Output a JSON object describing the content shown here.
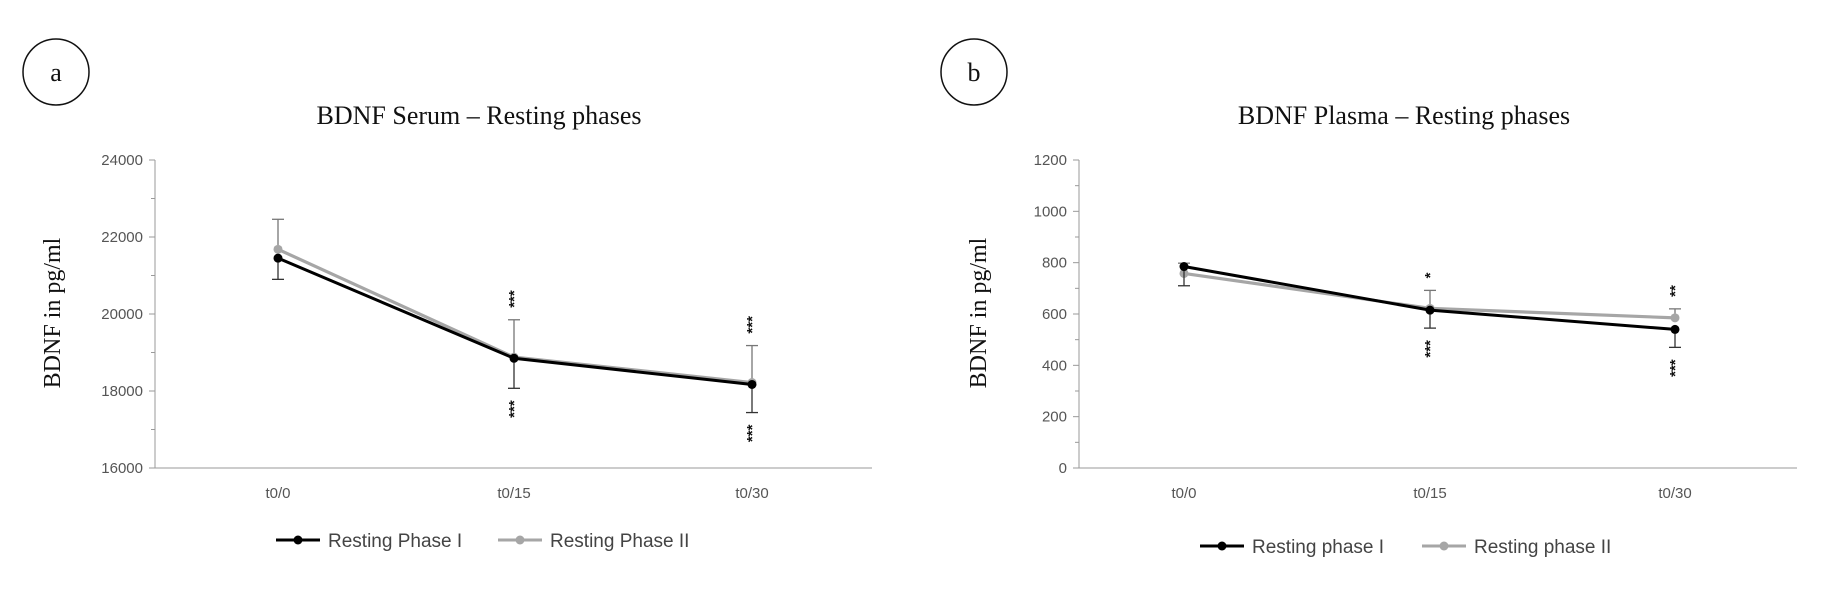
{
  "chart_data": [
    {
      "panel": "a",
      "type": "line",
      "title": "BDNF Serum – Resting phases",
      "xlabel": "",
      "ylabel": "BDNF in pg/ml",
      "categories": [
        "t0/0",
        "t0/15",
        "t0/30"
      ],
      "ylim": [
        16000,
        24000
      ],
      "yticks": [
        "16000",
        "18000",
        "20000",
        "22000",
        "24000"
      ],
      "grid": false,
      "legend": "bottom",
      "series": [
        {
          "name": "Resting Phase I",
          "color": "#000000",
          "values": [
            21450,
            18850,
            18170
          ],
          "err": [
            550,
            780,
            730
          ],
          "stars": [
            "",
            "***",
            "***"
          ]
        },
        {
          "name": "Resting Phase II",
          "color": "#a6a6a6",
          "values": [
            21680,
            18880,
            18220
          ],
          "err": [
            780,
            970,
            960
          ],
          "stars": [
            "",
            "***",
            "***"
          ]
        }
      ]
    },
    {
      "panel": "b",
      "type": "line",
      "title": "BDNF Plasma – Resting phases",
      "xlabel": "",
      "ylabel": "BDNF in pg/ml",
      "categories": [
        "t0/0",
        "t0/15",
        "t0/30"
      ],
      "ylim": [
        0,
        1200
      ],
      "yticks": [
        "0",
        "200",
        "400",
        "600",
        "800",
        "1000",
        "1200"
      ],
      "grid": false,
      "legend": "bottom",
      "series": [
        {
          "name": "Resting phase I",
          "color": "#000000",
          "values": [
            785,
            615,
            540
          ],
          "err": [
            75,
            70,
            70
          ],
          "stars": [
            "",
            "***",
            "***"
          ]
        },
        {
          "name": "Resting phase II",
          "color": "#a6a6a6",
          "values": [
            758,
            622,
            585
          ],
          "err": [
            40,
            70,
            35
          ],
          "stars": [
            "",
            "*",
            "**"
          ]
        }
      ]
    }
  ]
}
